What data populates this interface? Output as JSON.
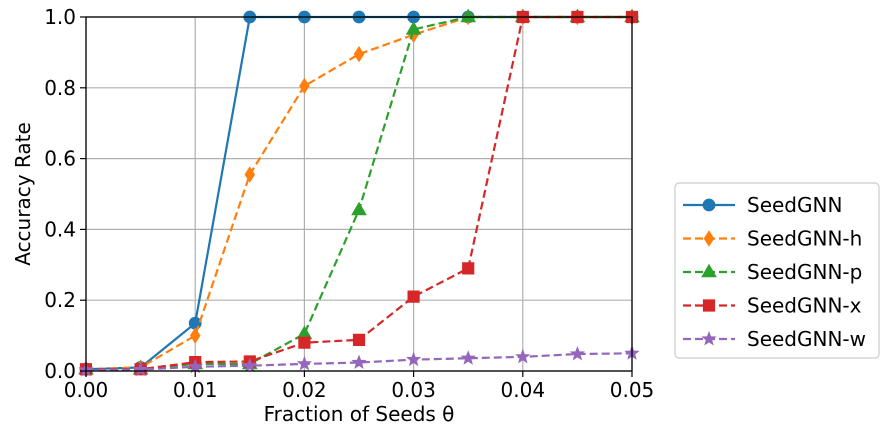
{
  "chart_data": {
    "type": "line",
    "xlabel": "Fraction of Seeds θ",
    "ylabel": "Accuracy Rate",
    "xlim": [
      0.0,
      0.05
    ],
    "ylim": [
      0.0,
      1.0
    ],
    "grid": true,
    "legend_position": "outside-right",
    "x_ticks": [
      "0.00",
      "0.01",
      "0.02",
      "0.03",
      "0.04",
      "0.05"
    ],
    "y_ticks": [
      "0.0",
      "0.2",
      "0.4",
      "0.6",
      "0.8",
      "1.0"
    ],
    "x": [
      0.0,
      0.005,
      0.01,
      0.015,
      0.02,
      0.025,
      0.03,
      0.035,
      0.04,
      0.045,
      0.05
    ],
    "series": [
      {
        "name": "SeedGNN",
        "color": "#1f77b4",
        "marker": "circle",
        "linestyle": "solid",
        "values": [
          0.005,
          0.01,
          0.135,
          1.0,
          1.0,
          1.0,
          1.0,
          1.0,
          1.0,
          1.0,
          1.0
        ]
      },
      {
        "name": "SeedGNN-h",
        "color": "#ff7f0e",
        "marker": "diamond",
        "linestyle": "dashed",
        "values": [
          0.005,
          0.01,
          0.1,
          0.555,
          0.805,
          0.895,
          0.95,
          1.0,
          1.0,
          1.0,
          1.0
        ]
      },
      {
        "name": "SeedGNN-p",
        "color": "#2ca02c",
        "marker": "triangle",
        "linestyle": "dashed",
        "values": [
          0.005,
          0.005,
          0.02,
          0.02,
          0.105,
          0.455,
          0.965,
          1.0,
          1.0,
          1.0,
          1.0
        ]
      },
      {
        "name": "SeedGNN-x",
        "color": "#d62728",
        "marker": "square",
        "linestyle": "dashed",
        "values": [
          0.005,
          0.005,
          0.025,
          0.027,
          0.08,
          0.088,
          0.21,
          0.29,
          1.0,
          1.0,
          1.0
        ]
      },
      {
        "name": "SeedGNN-w",
        "color": "#9467bd",
        "marker": "star",
        "linestyle": "dashed",
        "values": [
          0.003,
          0.004,
          0.012,
          0.015,
          0.02,
          0.024,
          0.032,
          0.036,
          0.04,
          0.048,
          0.05
        ]
      }
    ]
  }
}
